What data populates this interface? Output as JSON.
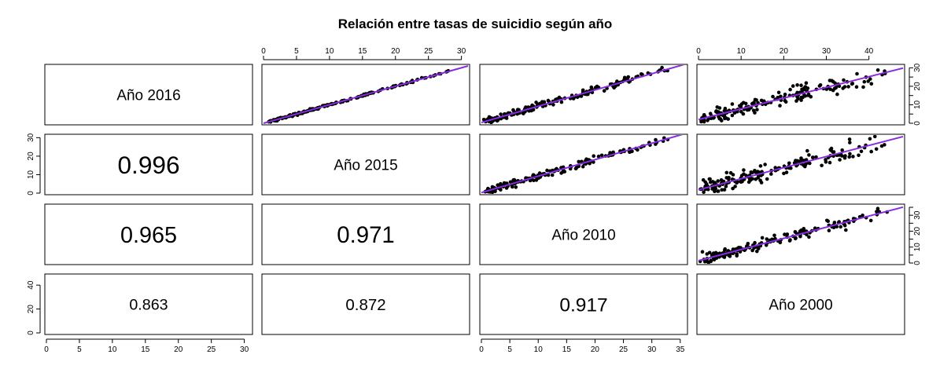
{
  "chart_data": {
    "type": "scatter",
    "title": "Relación entre tasas de suicidio según año",
    "variables": [
      "Año 2016",
      "Año 2015",
      "Año 2010",
      "Año 2000"
    ],
    "correlations": [
      {
        "row": 1,
        "col": 0,
        "label": "0.996"
      },
      {
        "row": 2,
        "col": 0,
        "label": "0.965"
      },
      {
        "row": 2,
        "col": 1,
        "label": "0.971"
      },
      {
        "row": 3,
        "col": 0,
        "label": "0.863"
      },
      {
        "row": 3,
        "col": 1,
        "label": "0.872"
      },
      {
        "row": 3,
        "col": 2,
        "label": "0.917"
      }
    ],
    "axes": [
      {
        "variable": "Año 2016",
        "range": [
          0,
          31
        ],
        "ticks": [
          "0",
          "5",
          "10",
          "15",
          "20",
          "25",
          "30"
        ]
      },
      {
        "variable": "Año 2015",
        "range": [
          0,
          31
        ],
        "ticks": [
          "0",
          "10",
          "20",
          "30"
        ]
      },
      {
        "variable": "Año 2010",
        "range": [
          0,
          36
        ],
        "ticks": [
          "0",
          "5",
          "10",
          "15",
          "20",
          "25",
          "30",
          "35"
        ]
      },
      {
        "variable": "Año 2000",
        "range": [
          0,
          48
        ],
        "ticks": [
          "0",
          "10",
          "20",
          "30",
          "40"
        ]
      }
    ],
    "axis_layout": {
      "top": [
        {
          "col": 1,
          "ticks": [
            "0",
            "5",
            "10",
            "15",
            "20",
            "25",
            "30"
          ]
        },
        {
          "col": 3,
          "ticks": [
            "0",
            "10",
            "20",
            "30",
            "40"
          ]
        }
      ],
      "bottom": [
        {
          "col": 0,
          "ticks": [
            "0",
            "5",
            "10",
            "15",
            "20",
            "25",
            "30"
          ]
        },
        {
          "col": 2,
          "ticks": [
            "0",
            "5",
            "10",
            "15",
            "20",
            "25",
            "30",
            "35"
          ]
        }
      ],
      "left": [
        {
          "row": 1,
          "ticks": [
            "0",
            "10",
            "20",
            "30"
          ]
        },
        {
          "row": 3,
          "ticks": [
            "0",
            "20",
            "40"
          ],
          "range": [
            0,
            48
          ]
        }
      ],
      "right": [
        {
          "row": 0,
          "ticks": [
            "0",
            "5",
            "10",
            "15",
            "20",
            "25",
            "30"
          ]
        },
        {
          "row": 2,
          "ticks": [
            "0",
            "5",
            "10",
            "15",
            "20",
            "25",
            "30",
            "35"
          ]
        }
      ]
    },
    "scatter_panels": [
      {
        "row": 0,
        "col": 1,
        "fit": {
          "slope": 1.0,
          "intercept": 0.0
        },
        "spread": 0.4
      },
      {
        "row": 0,
        "col": 2,
        "fit": {
          "slope": 0.88,
          "intercept": 0.4
        },
        "spread": 1.4
      },
      {
        "row": 0,
        "col": 3,
        "fit": {
          "slope": 0.58,
          "intercept": 2.0
        },
        "spread": 3.0
      },
      {
        "row": 1,
        "col": 2,
        "fit": {
          "slope": 0.89,
          "intercept": 0.3
        },
        "spread": 1.4
      },
      {
        "row": 1,
        "col": 3,
        "fit": {
          "slope": 0.6,
          "intercept": 1.8
        },
        "spread": 3.0
      },
      {
        "row": 2,
        "col": 3,
        "fit": {
          "slope": 0.7,
          "intercept": 1.5
        },
        "spread": 2.5
      }
    ],
    "grid": false,
    "point_color": "#000000",
    "fit_line_color": "#8a2be2"
  }
}
